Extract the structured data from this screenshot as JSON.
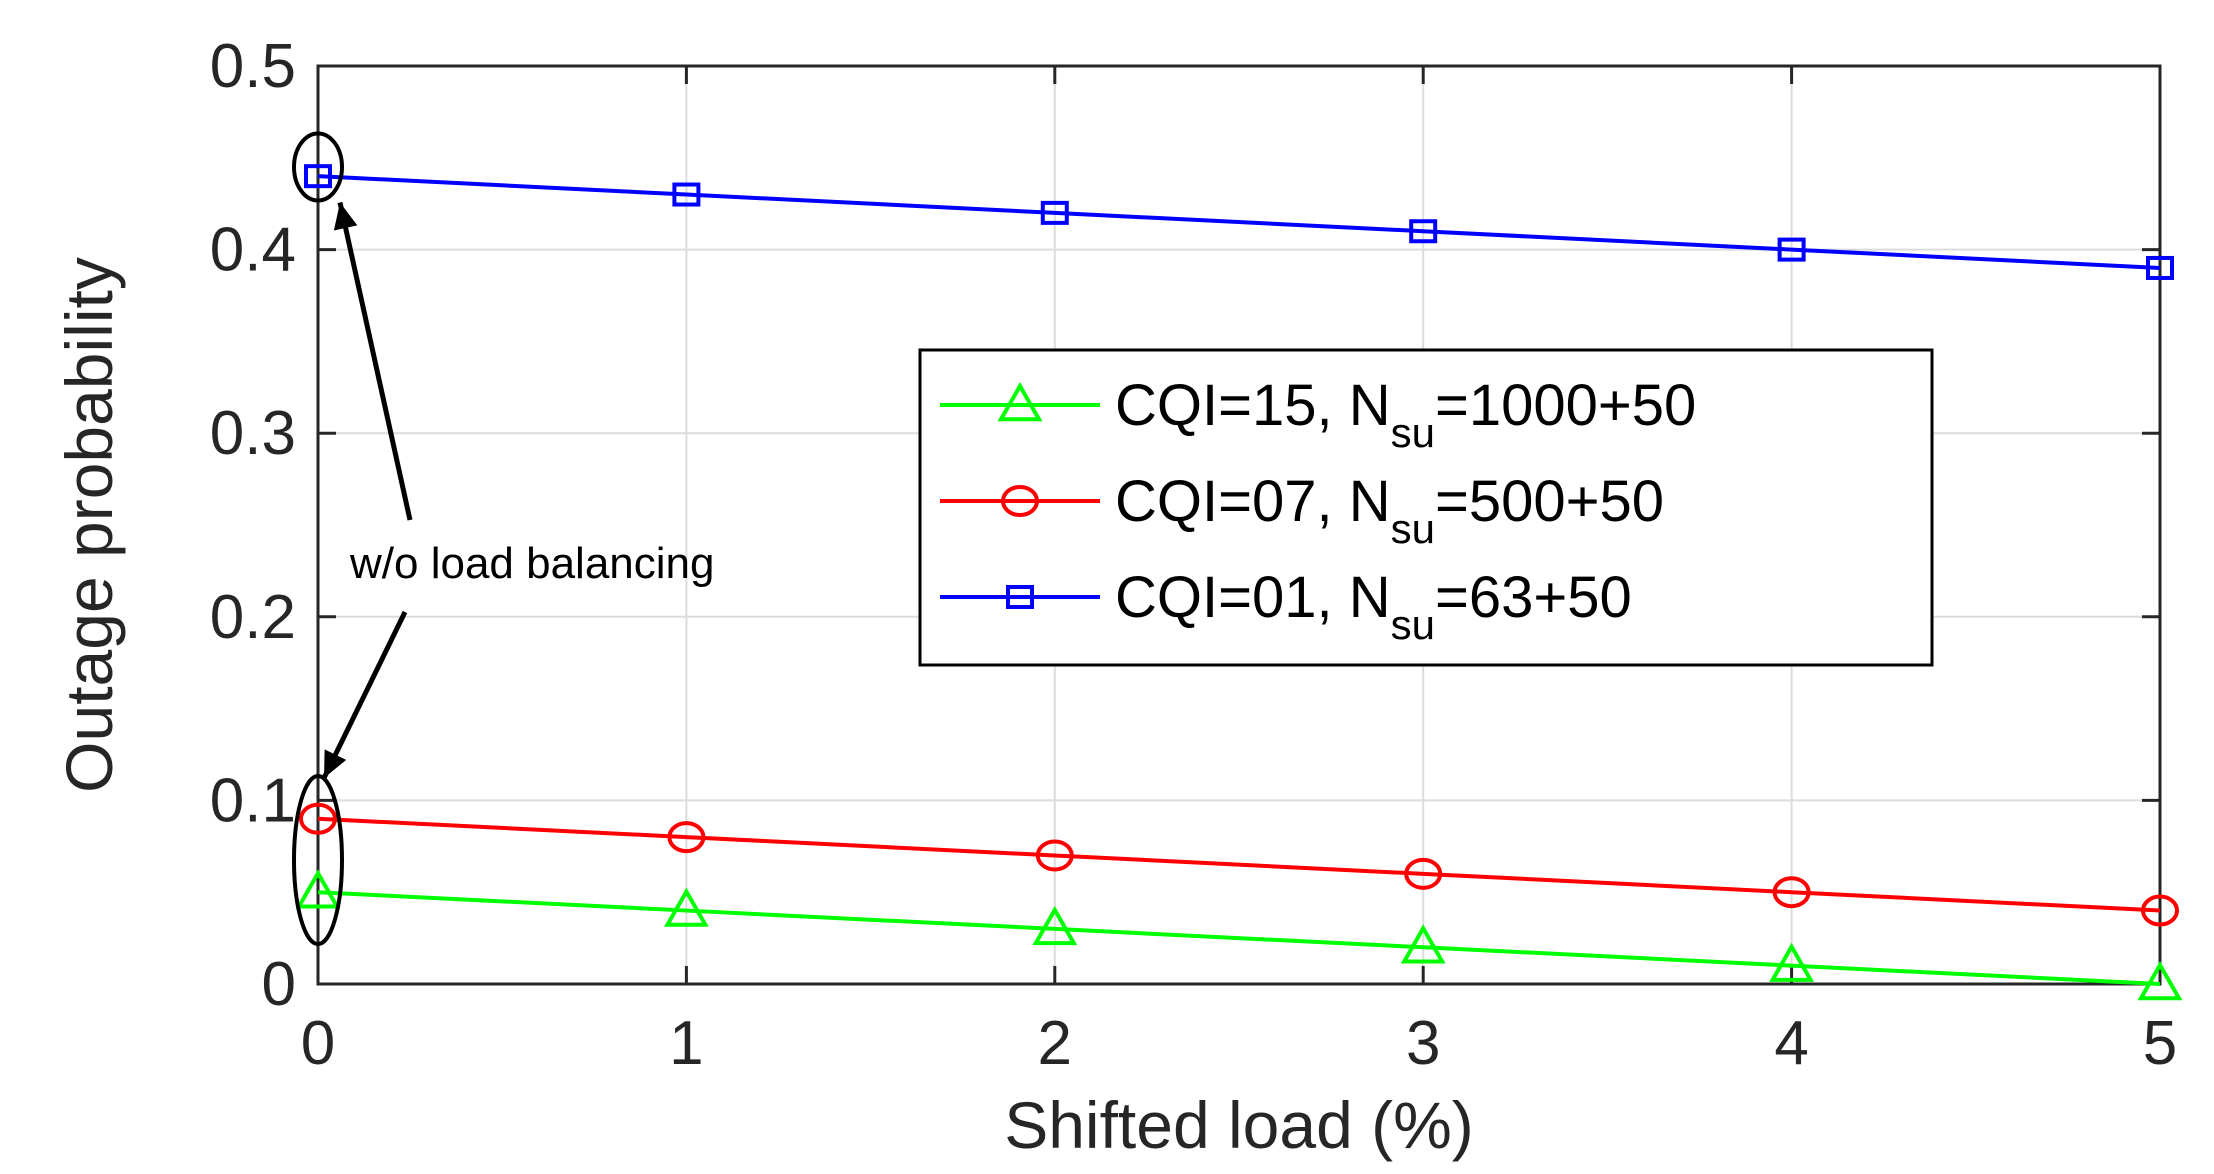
{
  "chart_data": {
    "type": "line",
    "title": "",
    "xlabel": "Shifted load (%)",
    "ylabel": "Outage probability",
    "x": [
      0,
      1,
      2,
      3,
      4,
      5
    ],
    "xlim": [
      0,
      5
    ],
    "ylim": [
      0,
      0.5
    ],
    "xticks": [
      "0",
      "1",
      "2",
      "3",
      "4",
      "5"
    ],
    "yticks": [
      "0",
      "0.1",
      "0.2",
      "0.3",
      "0.4",
      "0.5"
    ],
    "grid": true,
    "legend_position": "center-right",
    "series": [
      {
        "name": "CQI=15, N_su=1000+50",
        "label_main": "CQI=15, N",
        "label_sub": "su",
        "label_tail": "=1000+50",
        "color": "#00ff00",
        "marker": "triangle",
        "values": [
          0.05,
          0.04,
          0.03,
          0.02,
          0.01,
          0.0
        ]
      },
      {
        "name": "CQI=07, N_su=500+50",
        "label_main": "CQI=07, N",
        "label_sub": "su",
        "label_tail": "=500+50",
        "color": "#ff0000",
        "marker": "circle",
        "values": [
          0.09,
          0.08,
          0.07,
          0.06,
          0.05,
          0.04
        ]
      },
      {
        "name": "CQI=01, N_su=63+50",
        "label_main": "CQI=01, N",
        "label_sub": "su",
        "label_tail": "=63+50",
        "color": "#0000ff",
        "marker": "square",
        "values": [
          0.44,
          0.43,
          0.42,
          0.41,
          0.4,
          0.39
        ]
      }
    ],
    "annotation": {
      "text": "w/o load balancing",
      "targets": [
        {
          "x": 0,
          "y_range": [
            0.43,
            0.46
          ]
        },
        {
          "x": 0,
          "y_range": [
            0.025,
            0.11
          ]
        }
      ]
    }
  }
}
